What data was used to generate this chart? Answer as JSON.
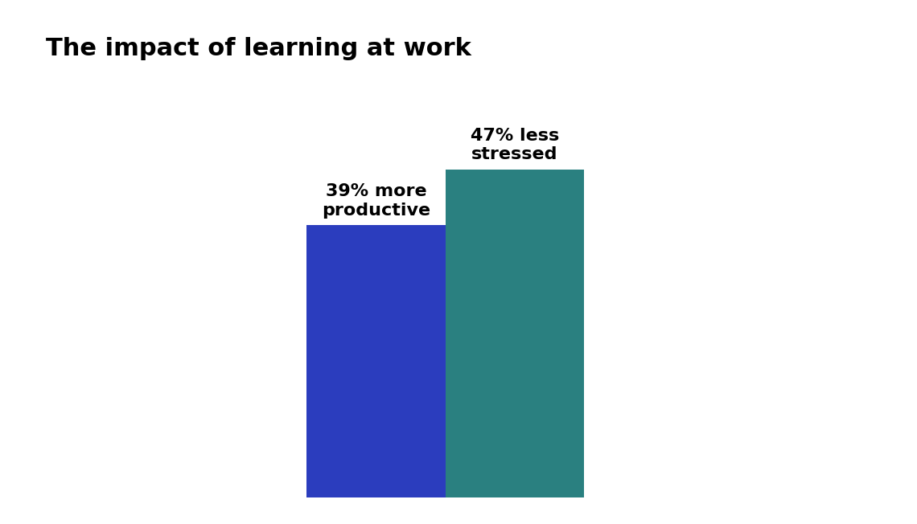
{
  "title": "The impact of learning at work",
  "categories": [
    "39% more\nproductive",
    "47% less\nstressed"
  ],
  "values": [
    39,
    47
  ],
  "bar_colors": [
    "#2B3DBE",
    "#2A8080"
  ],
  "bar_width": 0.42,
  "x_positions": [
    1.0,
    1.42
  ],
  "xlim": [
    0.0,
    2.5
  ],
  "ylim": [
    0,
    60
  ],
  "title_fontsize": 22,
  "label_fontsize": 16,
  "background_color": "#ffffff",
  "title_fontweight": "bold",
  "label_fontweight": "bold"
}
